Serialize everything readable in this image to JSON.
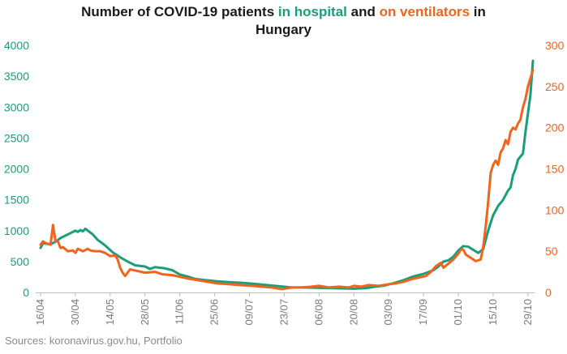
{
  "chart_data": {
    "type": "line",
    "title": {
      "part1": "Number of COVID-19 patients ",
      "part2": "in hospital",
      "part3": " and ",
      "part4": "on ventilators",
      "part5": " in",
      "line2": "Hungary"
    },
    "left_axis": {
      "ylim": [
        0,
        4000
      ],
      "ticks": [
        "0",
        "500",
        "1000",
        "1500",
        "2000",
        "2500",
        "3000",
        "3500",
        "4000"
      ]
    },
    "right_axis": {
      "ylim": [
        0,
        300
      ],
      "ticks": [
        "0",
        "50",
        "100",
        "150",
        "200",
        "250",
        "300"
      ]
    },
    "x_ticks": [
      "16/04",
      "30/04",
      "14/05",
      "28/05",
      "11/06",
      "25/06",
      "09/07",
      "23/07",
      "06/08",
      "20/08",
      "03/09",
      "17/09",
      "01/10",
      "15/10",
      "29/10"
    ],
    "grid": false,
    "colors": {
      "hospital": "#1a9e7a",
      "ventilators": "#f0641e"
    },
    "series": [
      {
        "key": "hospital",
        "axis": "left",
        "points": [
          [
            "2020-04-16",
            720
          ],
          [
            "2020-04-17",
            800
          ],
          [
            "2020-04-18",
            790
          ],
          [
            "2020-04-20",
            780
          ],
          [
            "2020-04-22",
            820
          ],
          [
            "2020-04-24",
            880
          ],
          [
            "2020-04-26",
            920
          ],
          [
            "2020-04-28",
            960
          ],
          [
            "2020-04-30",
            1000
          ],
          [
            "2020-05-01",
            980
          ],
          [
            "2020-05-02",
            1010
          ],
          [
            "2020-05-03",
            990
          ],
          [
            "2020-05-04",
            1030
          ],
          [
            "2020-05-05",
            1000
          ],
          [
            "2020-05-07",
            940
          ],
          [
            "2020-05-09",
            850
          ],
          [
            "2020-05-12",
            760
          ],
          [
            "2020-05-15",
            650
          ],
          [
            "2020-05-18",
            570
          ],
          [
            "2020-05-21",
            500
          ],
          [
            "2020-05-24",
            440
          ],
          [
            "2020-05-28",
            420
          ],
          [
            "2020-05-30",
            380
          ],
          [
            "2020-06-01",
            410
          ],
          [
            "2020-06-05",
            390
          ],
          [
            "2020-06-08",
            360
          ],
          [
            "2020-06-11",
            290
          ],
          [
            "2020-06-14",
            260
          ],
          [
            "2020-06-17",
            220
          ],
          [
            "2020-06-21",
            200
          ],
          [
            "2020-06-26",
            180
          ],
          [
            "2020-07-01",
            165
          ],
          [
            "2020-07-06",
            155
          ],
          [
            "2020-07-11",
            140
          ],
          [
            "2020-07-16",
            120
          ],
          [
            "2020-07-21",
            100
          ],
          [
            "2020-07-26",
            80
          ],
          [
            "2020-07-31",
            80
          ],
          [
            "2020-08-05",
            75
          ],
          [
            "2020-08-10",
            70
          ],
          [
            "2020-08-15",
            65
          ],
          [
            "2020-08-20",
            60
          ],
          [
            "2020-08-25",
            70
          ],
          [
            "2020-08-28",
            90
          ],
          [
            "2020-09-01",
            110
          ],
          [
            "2020-09-05",
            150
          ],
          [
            "2020-09-09",
            200
          ],
          [
            "2020-09-13",
            260
          ],
          [
            "2020-09-17",
            300
          ],
          [
            "2020-09-21",
            360
          ],
          [
            "2020-09-23",
            420
          ],
          [
            "2020-09-25",
            500
          ],
          [
            "2020-09-27",
            520
          ],
          [
            "2020-09-29",
            580
          ],
          [
            "2020-10-01",
            680
          ],
          [
            "2020-10-03",
            750
          ],
          [
            "2020-10-05",
            740
          ],
          [
            "2020-10-07",
            690
          ],
          [
            "2020-10-09",
            640
          ],
          [
            "2020-10-11",
            700
          ],
          [
            "2020-10-13",
            1000
          ],
          [
            "2020-10-15",
            1250
          ],
          [
            "2020-10-17",
            1400
          ],
          [
            "2020-10-19",
            1500
          ],
          [
            "2020-10-21",
            1650
          ],
          [
            "2020-10-22",
            1700
          ],
          [
            "2020-10-23",
            1900
          ],
          [
            "2020-10-24",
            2000
          ],
          [
            "2020-10-25",
            2150
          ],
          [
            "2020-10-26",
            2200
          ],
          [
            "2020-10-27",
            2250
          ],
          [
            "2020-10-28",
            2600
          ],
          [
            "2020-10-29",
            2900
          ],
          [
            "2020-10-30",
            3200
          ],
          [
            "2020-10-31",
            3750
          ]
        ]
      },
      {
        "key": "ventilators",
        "axis": "right",
        "points": [
          [
            "2020-04-16",
            58
          ],
          [
            "2020-04-17",
            62
          ],
          [
            "2020-04-18",
            60
          ],
          [
            "2020-04-20",
            58
          ],
          [
            "2020-04-21",
            82
          ],
          [
            "2020-04-22",
            62
          ],
          [
            "2020-04-23",
            62
          ],
          [
            "2020-04-24",
            54
          ],
          [
            "2020-04-25",
            55
          ],
          [
            "2020-04-27",
            50
          ],
          [
            "2020-04-29",
            51
          ],
          [
            "2020-04-30",
            48
          ],
          [
            "2020-05-01",
            53
          ],
          [
            "2020-05-03",
            50
          ],
          [
            "2020-05-05",
            53
          ],
          [
            "2020-05-06",
            51
          ],
          [
            "2020-05-08",
            50
          ],
          [
            "2020-05-10",
            50
          ],
          [
            "2020-05-12",
            48
          ],
          [
            "2020-05-14",
            44
          ],
          [
            "2020-05-16",
            45
          ],
          [
            "2020-05-17",
            40
          ],
          [
            "2020-05-18",
            30
          ],
          [
            "2020-05-19",
            24
          ],
          [
            "2020-05-20",
            20
          ],
          [
            "2020-05-22",
            28
          ],
          [
            "2020-05-25",
            26
          ],
          [
            "2020-05-28",
            24
          ],
          [
            "2020-06-01",
            25
          ],
          [
            "2020-06-04",
            22
          ],
          [
            "2020-06-08",
            21
          ],
          [
            "2020-06-11",
            19
          ],
          [
            "2020-06-14",
            17
          ],
          [
            "2020-06-18",
            15
          ],
          [
            "2020-06-22",
            13
          ],
          [
            "2020-06-26",
            11
          ],
          [
            "2020-07-01",
            10
          ],
          [
            "2020-07-05",
            9
          ],
          [
            "2020-07-10",
            8
          ],
          [
            "2020-07-14",
            7
          ],
          [
            "2020-07-18",
            6
          ],
          [
            "2020-07-22",
            4
          ],
          [
            "2020-07-26",
            6
          ],
          [
            "2020-07-30",
            6
          ],
          [
            "2020-08-03",
            7
          ],
          [
            "2020-08-06",
            8
          ],
          [
            "2020-08-10",
            6
          ],
          [
            "2020-08-14",
            7
          ],
          [
            "2020-08-18",
            6
          ],
          [
            "2020-08-20",
            8
          ],
          [
            "2020-08-23",
            7
          ],
          [
            "2020-08-26",
            9
          ],
          [
            "2020-08-30",
            8
          ],
          [
            "2020-09-03",
            10
          ],
          [
            "2020-09-06",
            11
          ],
          [
            "2020-09-09",
            13
          ],
          [
            "2020-09-12",
            16
          ],
          [
            "2020-09-15",
            18
          ],
          [
            "2020-09-18",
            20
          ],
          [
            "2020-09-20",
            25
          ],
          [
            "2020-09-22",
            32
          ],
          [
            "2020-09-24",
            36
          ],
          [
            "2020-09-25",
            30
          ],
          [
            "2020-09-27",
            35
          ],
          [
            "2020-09-29",
            40
          ],
          [
            "2020-10-01",
            47
          ],
          [
            "2020-10-02",
            52
          ],
          [
            "2020-10-03",
            52
          ],
          [
            "2020-10-04",
            46
          ],
          [
            "2020-10-06",
            42
          ],
          [
            "2020-10-08",
            38
          ],
          [
            "2020-10-10",
            40
          ],
          [
            "2020-10-11",
            55
          ],
          [
            "2020-10-12",
            80
          ],
          [
            "2020-10-13",
            110
          ],
          [
            "2020-10-14",
            145
          ],
          [
            "2020-10-15",
            155
          ],
          [
            "2020-10-16",
            160
          ],
          [
            "2020-10-17",
            155
          ],
          [
            "2020-10-18",
            170
          ],
          [
            "2020-10-19",
            175
          ],
          [
            "2020-10-20",
            185
          ],
          [
            "2020-10-21",
            180
          ],
          [
            "2020-10-22",
            195
          ],
          [
            "2020-10-23",
            200
          ],
          [
            "2020-10-24",
            198
          ],
          [
            "2020-10-25",
            205
          ],
          [
            "2020-10-26",
            210
          ],
          [
            "2020-10-27",
            225
          ],
          [
            "2020-10-28",
            235
          ],
          [
            "2020-10-29",
            250
          ],
          [
            "2020-10-30",
            260
          ],
          [
            "2020-10-31",
            270
          ]
        ]
      }
    ]
  },
  "source": "Sources: koronavirus.gov.hu, Portfolio"
}
